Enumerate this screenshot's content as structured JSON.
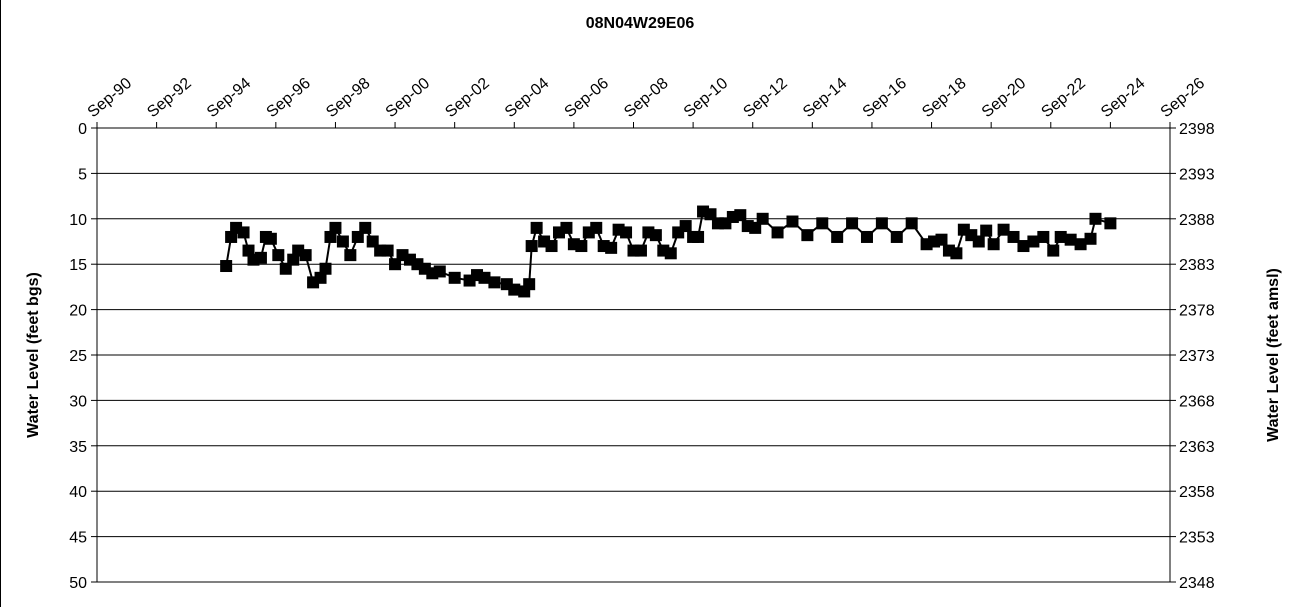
{
  "chart_data": {
    "type": "line",
    "title": "08N04W29E06",
    "y_label": "Water Level (feet bgs)",
    "y2_label": "Water Level (feet amsl)",
    "color": "#000000",
    "marker": "square",
    "y_inverted": true,
    "grid": true,
    "xlim": [
      "1990-09",
      "2026-09"
    ],
    "xticks": [
      {
        "value": "1990-09",
        "label": "Sep-90"
      },
      {
        "value": "1992-09",
        "label": "Sep-92"
      },
      {
        "value": "1994-09",
        "label": "Sep-94"
      },
      {
        "value": "1996-09",
        "label": "Sep-96"
      },
      {
        "value": "1998-09",
        "label": "Sep-98"
      },
      {
        "value": "2000-09",
        "label": "Sep-00"
      },
      {
        "value": "2002-09",
        "label": "Sep-02"
      },
      {
        "value": "2004-09",
        "label": "Sep-04"
      },
      {
        "value": "2006-09",
        "label": "Sep-06"
      },
      {
        "value": "2008-09",
        "label": "Sep-08"
      },
      {
        "value": "2010-09",
        "label": "Sep-10"
      },
      {
        "value": "2012-09",
        "label": "Sep-12"
      },
      {
        "value": "2014-09",
        "label": "Sep-14"
      },
      {
        "value": "2016-09",
        "label": "Sep-16"
      },
      {
        "value": "2018-09",
        "label": "Sep-18"
      },
      {
        "value": "2020-09",
        "label": "Sep-20"
      },
      {
        "value": "2022-09",
        "label": "Sep-22"
      },
      {
        "value": "2024-09",
        "label": "Sep-24"
      },
      {
        "value": "2026-09",
        "label": "Sep-26"
      }
    ],
    "ylim": [
      0,
      50
    ],
    "yticks": [
      0,
      5,
      10,
      15,
      20,
      25,
      30,
      35,
      40,
      45,
      50
    ],
    "y2lim": [
      2398,
      2348
    ],
    "y2ticks": [
      2398,
      2393,
      2388,
      2383,
      2378,
      2373,
      2368,
      2363,
      2358,
      2353,
      2348
    ],
    "x": [
      "1995-01",
      "1995-03",
      "1995-05",
      "1995-08",
      "1995-10",
      "1995-12",
      "1996-03",
      "1996-05",
      "1996-07",
      "1996-10",
      "1997-01",
      "1997-04",
      "1997-06",
      "1997-09",
      "1997-12",
      "1998-03",
      "1998-05",
      "1998-07",
      "1998-09",
      "1998-12",
      "1999-03",
      "1999-06",
      "1999-09",
      "1999-12",
      "2000-03",
      "2000-06",
      "2000-09",
      "2000-12",
      "2001-03",
      "2001-06",
      "2001-09",
      "2001-12",
      "2002-03",
      "2002-09",
      "2003-03",
      "2003-06",
      "2003-09",
      "2004-01",
      "2004-06",
      "2004-09",
      "2005-01",
      "2005-03",
      "2005-04",
      "2005-06",
      "2005-09",
      "2005-12",
      "2006-03",
      "2006-06",
      "2006-09",
      "2006-12",
      "2007-03",
      "2007-06",
      "2007-09",
      "2007-12",
      "2008-03",
      "2008-06",
      "2008-09",
      "2008-12",
      "2009-03",
      "2009-06",
      "2009-09",
      "2009-12",
      "2010-03",
      "2010-06",
      "2010-09",
      "2010-11",
      "2011-01",
      "2011-04",
      "2011-07",
      "2011-10",
      "2012-01",
      "2012-04",
      "2012-07",
      "2012-10",
      "2013-01",
      "2013-07",
      "2014-01",
      "2014-07",
      "2015-01",
      "2015-07",
      "2016-01",
      "2016-07",
      "2017-01",
      "2017-07",
      "2018-01",
      "2018-07",
      "2018-10",
      "2019-01",
      "2019-04",
      "2019-07",
      "2019-10",
      "2020-01",
      "2020-04",
      "2020-07",
      "2020-10",
      "2021-02",
      "2021-06",
      "2021-10",
      "2022-02",
      "2022-06",
      "2022-10",
      "2023-01",
      "2023-05",
      "2023-09",
      "2024-01",
      "2024-03",
      "2024-09"
    ],
    "values": [
      15.2,
      12,
      11,
      11.5,
      13.5,
      14.5,
      14.3,
      12,
      12.2,
      14,
      15.5,
      14.5,
      13.5,
      14,
      17,
      16.5,
      15.5,
      12,
      11,
      12.5,
      14,
      12,
      11,
      12.5,
      13.5,
      13.5,
      15,
      14,
      14.5,
      15,
      15.5,
      16,
      15.8,
      16.5,
      16.8,
      16.2,
      16.5,
      17,
      17.2,
      17.8,
      18,
      17.2,
      13,
      11,
      12.5,
      13,
      11.5,
      11,
      12.8,
      13,
      11.5,
      11,
      13,
      13.2,
      11.2,
      11.5,
      13.5,
      13.5,
      11.5,
      11.8,
      13.5,
      13.8,
      11.5,
      10.8,
      12,
      12,
      9.2,
      9.5,
      10.5,
      10.5,
      9.8,
      9.6,
      10.8,
      11,
      10,
      11.5,
      10.3,
      11.8,
      10.5,
      12,
      10.5,
      12,
      10.5,
      12,
      10.5,
      12.8,
      12.5,
      12.3,
      13.5,
      13.8,
      11.2,
      11.8,
      12.5,
      11.3,
      12.8,
      11.2,
      12,
      13,
      12.5,
      12,
      13.5,
      12,
      12.3,
      12.8,
      12.2,
      10,
      10.5
    ]
  }
}
